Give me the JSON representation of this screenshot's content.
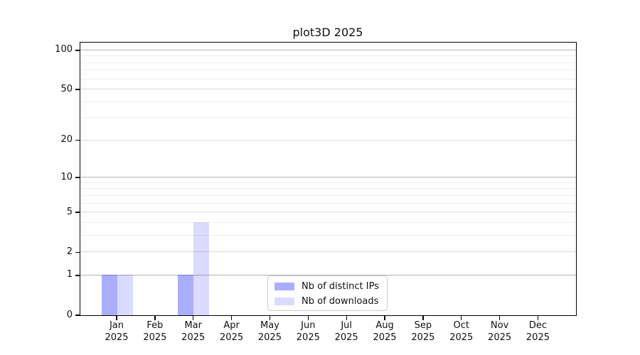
{
  "chart_data": {
    "type": "bar",
    "title": "plot3D 2025",
    "categories": [
      "Jan",
      "Feb",
      "Mar",
      "Apr",
      "May",
      "Jun",
      "Jul",
      "Aug",
      "Sep",
      "Oct",
      "Nov",
      "Dec"
    ],
    "year": "2025",
    "series": [
      {
        "name": "Nb of distinct IPs",
        "color": "#0a10f558",
        "values": [
          1,
          0,
          1,
          0,
          0,
          0,
          0,
          0,
          0,
          0,
          0,
          0
        ]
      },
      {
        "name": "Nb of downloads",
        "color": "#0a10f526",
        "values": [
          1,
          0,
          4,
          0,
          0,
          0,
          0,
          0,
          0,
          0,
          0,
          0
        ]
      }
    ],
    "xlabel": "",
    "ylabel": "",
    "scale": "log1p",
    "ylim": [
      0,
      113
    ],
    "y_tick_labels": [
      0,
      1,
      2,
      5,
      10,
      20,
      50,
      100
    ],
    "grid": {
      "on": true,
      "major": [
        1,
        10,
        100
      ],
      "labeled_minor": [
        2,
        5,
        20,
        50
      ],
      "minor": [
        3,
        4,
        6,
        7,
        8,
        9,
        30,
        40,
        60,
        70,
        80,
        90
      ]
    },
    "legend": {
      "position": "lower center",
      "entries": [
        "Nb of distinct IPs",
        "Nb of downloads"
      ]
    },
    "colors": {
      "grid_major": "#b4b4b4",
      "grid_labeled_minor": "#d8d8d8",
      "grid_minor": "#efefef",
      "spine": "#000000",
      "background": "#ffffff"
    }
  }
}
